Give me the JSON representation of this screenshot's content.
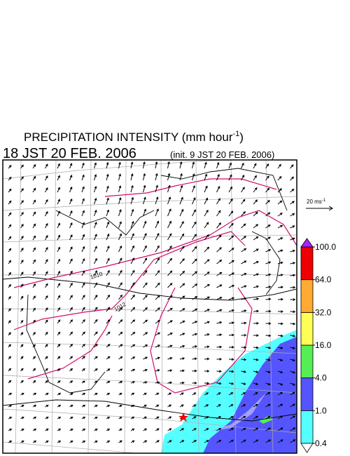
{
  "header": {
    "title": {
      "text": "PRECIPITATION INTENSITY (mm hour",
      "superscript": "-1",
      "close": ")"
    },
    "valid_time": "18 JST 20 FEB. 2006",
    "init_time": "(init. 9 JST 20 FEB. 2006)"
  },
  "wind_legend": {
    "text": "20 ms",
    "superscript": "-1"
  },
  "colorbar": {
    "ticks": [
      {
        "value": 0.4,
        "label": "0.4"
      },
      {
        "value": 1,
        "label": "1.0"
      },
      {
        "value": 4,
        "label": "4.0"
      },
      {
        "value": 16,
        "label": "16.0"
      },
      {
        "value": 32,
        "label": "32.0"
      },
      {
        "value": 64,
        "label": "64.0"
      },
      {
        "value": 100,
        "label": "100.0"
      }
    ],
    "colors": [
      "#55ffff",
      "#5555ff",
      "#55ee55",
      "#ffff55",
      "#ffaa33",
      "#ee0000"
    ],
    "over_color": "#aa22ff",
    "under_color": "#ffffff"
  },
  "isobar_labels": [
    "1010",
    "1012"
  ]
}
